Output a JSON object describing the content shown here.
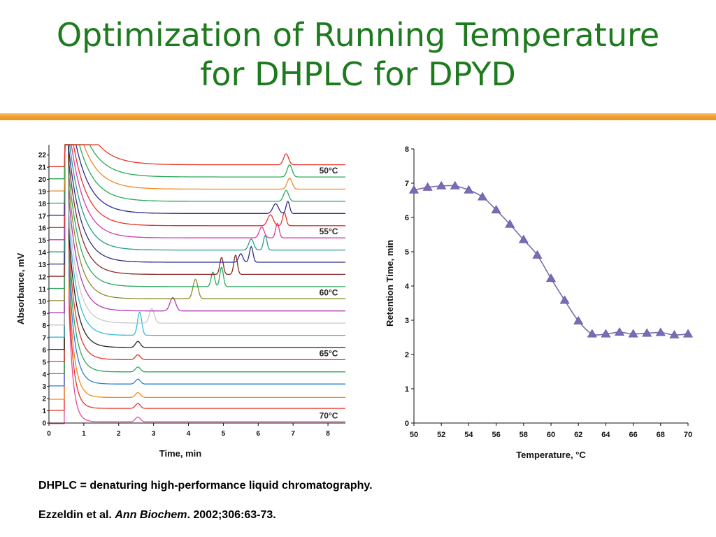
{
  "title": {
    "line1": "Optimization of Running Temperature",
    "line2": "for DHPLC for DPYD"
  },
  "colors": {
    "title": "#1e7a1e",
    "rule": "#f0a030",
    "marker": "#7b6bb5",
    "fit_line": "#7b6bb5"
  },
  "footnotes": {
    "line1": "DHPLC = denaturing high-performance liquid chromatography.",
    "citation_authors": "Ezzeldin et al. ",
    "citation_journal": "Ann Biochem",
    "citation_rest": ". 2002;306:63-73."
  },
  "chart_data": [
    {
      "type": "line",
      "xlabel": "Time, min",
      "ylabel": "Absorbance, mV",
      "xlim": [
        0,
        8.5
      ],
      "ylim": [
        0,
        22.5
      ],
      "xticks": [
        "0",
        "1",
        "2",
        "3",
        "4",
        "5",
        "6",
        "7",
        "8"
      ],
      "yticks": [
        "0",
        "1",
        "2",
        "3",
        "4",
        "5",
        "6",
        "7",
        "8",
        "9",
        "10",
        "11",
        "12",
        "13",
        "14",
        "15",
        "16",
        "17",
        "18",
        "19",
        "20",
        "21",
        "22"
      ],
      "annotations": [
        {
          "text": "50°C",
          "trace": 20
        },
        {
          "text": "55°C",
          "trace": 15
        },
        {
          "text": "60°C",
          "trace": 10
        },
        {
          "text": "65°C",
          "trace": 5
        },
        {
          "text": "70°C",
          "trace": 0
        }
      ],
      "series": [
        {
          "temperature": 70,
          "baseline": 0.1,
          "peaks": [
            [
              2.55,
              0.4,
              0.07
            ]
          ],
          "color": "#e8479a"
        },
        {
          "temperature": 69,
          "baseline": 1.2,
          "peaks": [
            [
              2.55,
              0.4,
              0.07
            ]
          ],
          "color": "#e8342a"
        },
        {
          "temperature": 68,
          "baseline": 2.1,
          "peaks": [
            [
              2.55,
              0.4,
              0.07
            ]
          ],
          "color": "#f08a1f"
        },
        {
          "temperature": 67,
          "baseline": 3.2,
          "peaks": [
            [
              2.55,
              0.4,
              0.07
            ]
          ],
          "color": "#2b7de0"
        },
        {
          "temperature": 66,
          "baseline": 4.2,
          "peaks": [
            [
              2.55,
              0.4,
              0.07
            ]
          ],
          "color": "#2aa85a"
        },
        {
          "temperature": 65,
          "baseline": 5.2,
          "peaks": [
            [
              2.55,
              0.4,
              0.07
            ]
          ],
          "color": "#e8342a"
        },
        {
          "temperature": 64,
          "baseline": 6.2,
          "peaks": [
            [
              2.55,
              0.5,
              0.07
            ]
          ],
          "color": "#222222"
        },
        {
          "temperature": 63,
          "baseline": 7.2,
          "peaks": [
            [
              2.6,
              1.9,
              0.06
            ]
          ],
          "color": "#3bb8d8"
        },
        {
          "temperature": 62,
          "baseline": 8.2,
          "peaks": [
            [
              2.95,
              1.2,
              0.07
            ]
          ],
          "color": "#c8c8c8"
        },
        {
          "temperature": 61,
          "baseline": 9.2,
          "peaks": [
            [
              3.55,
              1.1,
              0.08
            ]
          ],
          "color": "#b03ab0"
        },
        {
          "temperature": 60,
          "baseline": 10.2,
          "peaks": [
            [
              4.2,
              1.6,
              0.07
            ]
          ],
          "color": "#8a8a2a"
        },
        {
          "temperature": 59,
          "baseline": 11.2,
          "peaks": [
            [
              4.7,
              1.2,
              0.05
            ],
            [
              4.95,
              1.6,
              0.05
            ]
          ],
          "color": "#2aa85a"
        },
        {
          "temperature": 58,
          "baseline": 12.2,
          "peaks": [
            [
              4.95,
              1.4,
              0.05
            ],
            [
              5.35,
              1.6,
              0.05
            ]
          ],
          "color": "#8a2a2a"
        },
        {
          "temperature": 57,
          "baseline": 13.2,
          "peaks": [
            [
              5.5,
              0.7,
              0.06
            ],
            [
              5.8,
              1.3,
              0.05
            ]
          ],
          "color": "#2d2d8a"
        },
        {
          "temperature": 56,
          "baseline": 14.2,
          "peaks": [
            [
              5.8,
              0.9,
              0.07
            ],
            [
              6.2,
              1.2,
              0.05
            ]
          ],
          "color": "#2a9a8a"
        },
        {
          "temperature": 55,
          "baseline": 15.2,
          "peaks": [
            [
              6.1,
              0.9,
              0.07
            ],
            [
              6.55,
              1.2,
              0.05
            ]
          ],
          "color": "#d83aa8"
        },
        {
          "temperature": 54,
          "baseline": 16.2,
          "peaks": [
            [
              6.35,
              0.9,
              0.08
            ],
            [
              6.75,
              1.1,
              0.05
            ]
          ],
          "color": "#e8342a"
        },
        {
          "temperature": 53,
          "baseline": 17.2,
          "peaks": [
            [
              6.5,
              0.8,
              0.08
            ],
            [
              6.85,
              1.0,
              0.05
            ]
          ],
          "color": "#2d2d8a"
        },
        {
          "temperature": 52,
          "baseline": 18.2,
          "peaks": [
            [
              6.8,
              0.9,
              0.07
            ]
          ],
          "color": "#2aa85a"
        },
        {
          "temperature": 51,
          "baseline": 19.2,
          "peaks": [
            [
              6.9,
              0.9,
              0.07
            ]
          ],
          "color": "#f08a1f"
        },
        {
          "temperature": 50,
          "baseline": 20.2,
          "peaks": [
            [
              6.9,
              1.0,
              0.07
            ]
          ],
          "color": "#2aa85a"
        },
        {
          "temperature": 49,
          "baseline": 21.2,
          "peaks": [
            [
              6.8,
              0.9,
              0.07
            ]
          ],
          "color": "#e8342a"
        }
      ]
    },
    {
      "type": "scatter",
      "xlabel": "Temperature, °C",
      "ylabel": "Retention Time, min",
      "xlim": [
        50,
        70
      ],
      "ylim": [
        0,
        8
      ],
      "xticks": [
        "50",
        "52",
        "54",
        "56",
        "58",
        "60",
        "62",
        "64",
        "66",
        "68",
        "70"
      ],
      "yticks": [
        "0",
        "1",
        "2",
        "3",
        "4",
        "5",
        "6",
        "7",
        "8"
      ],
      "x": [
        50,
        51,
        52,
        53,
        54,
        55,
        56,
        57,
        58,
        59,
        60,
        61,
        62,
        63,
        64,
        65,
        66,
        67,
        68,
        69,
        70
      ],
      "y": [
        6.8,
        6.88,
        6.92,
        6.92,
        6.8,
        6.6,
        6.22,
        5.8,
        5.35,
        4.9,
        4.22,
        3.58,
        2.98,
        2.6,
        2.6,
        2.65,
        2.6,
        2.62,
        2.64,
        2.57,
        2.6
      ],
      "fit_line": true,
      "marker": "triangle"
    }
  ]
}
